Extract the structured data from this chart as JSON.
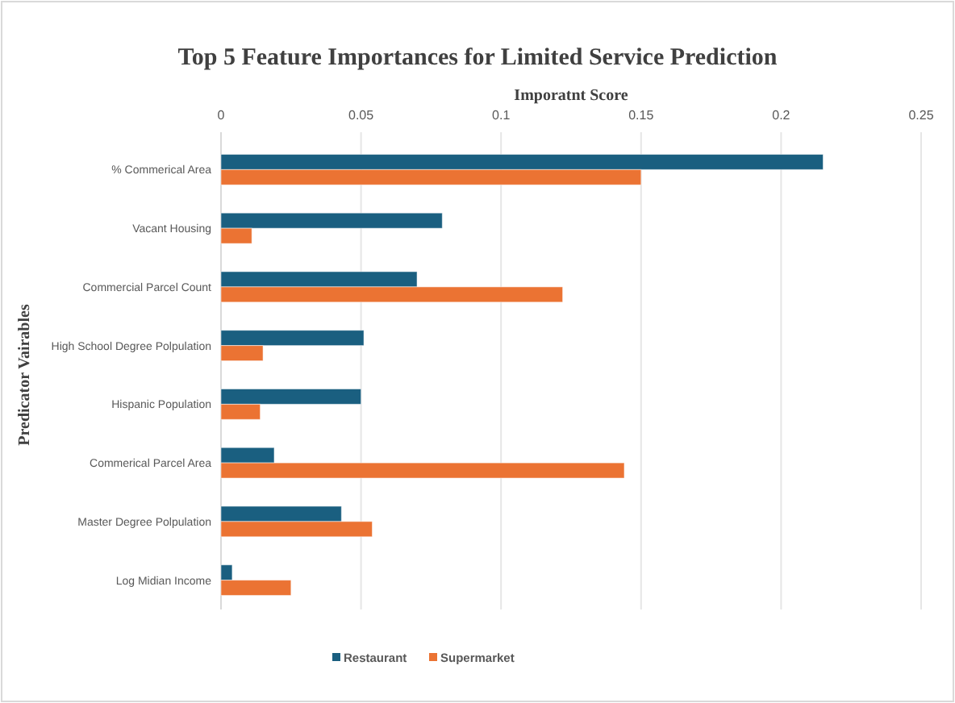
{
  "chart_data": {
    "type": "bar",
    "orientation": "horizontal",
    "title": "Top 5 Feature Importances for Limited Service Prediction",
    "xlabel": "Imporatnt Score",
    "ylabel": "Predicator Vairables",
    "categories": [
      "% Commerical Area",
      "Vacant Housing",
      "Commercial Parcel Count",
      "High School Degree Polpulation",
      "Hispanic Population",
      "Commerical Parcel Area",
      "Master Degree Polpulation",
      "Log Midian Income"
    ],
    "series": [
      {
        "name": "Restaurant",
        "color": "#1a5f80",
        "values": [
          0.215,
          0.079,
          0.07,
          0.051,
          0.05,
          0.019,
          0.043,
          0.004
        ]
      },
      {
        "name": "Supermarket",
        "color": "#eb7333",
        "values": [
          0.15,
          0.011,
          0.122,
          0.015,
          0.014,
          0.144,
          0.054,
          0.025
        ]
      }
    ],
    "xlim": [
      0,
      0.25
    ],
    "xticks": [
      0,
      0.05,
      0.1,
      0.15,
      0.2,
      0.25
    ],
    "grid": "x",
    "legend": "bottom"
  }
}
